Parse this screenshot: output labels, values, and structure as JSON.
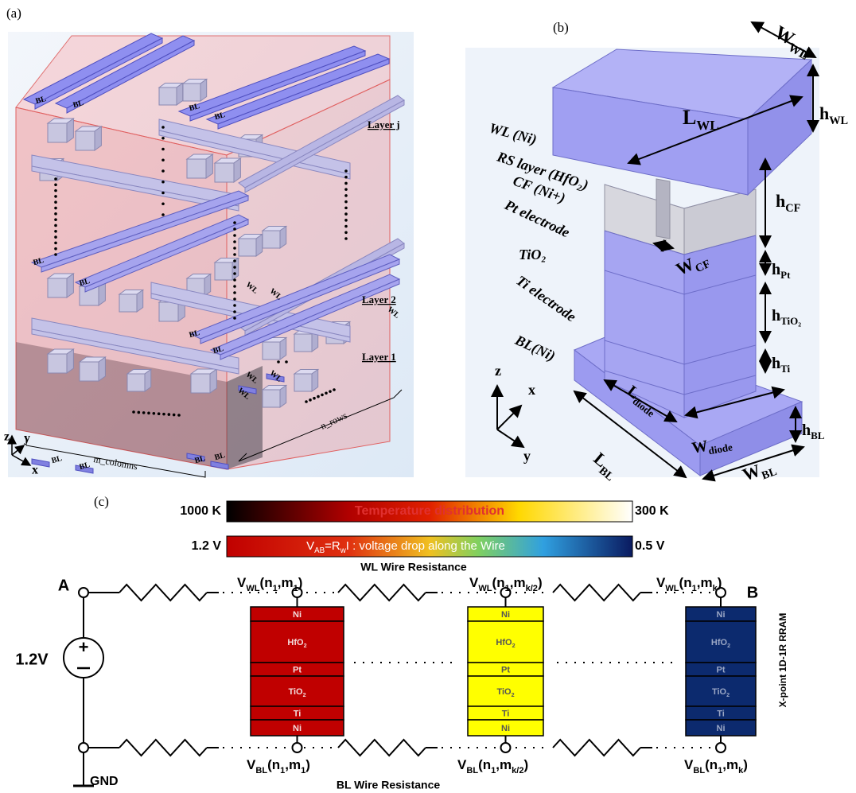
{
  "panel_a": {
    "label": "(a)",
    "bl_labels": [
      "BL",
      "BL",
      "BL",
      "BL",
      "BL",
      "BL",
      "BL",
      "BL",
      "BL",
      "BL",
      "BL",
      "BL"
    ],
    "wl_labels": [
      "WL",
      "WL",
      "WL",
      "WL",
      "WL",
      "WL"
    ],
    "layers": [
      "Layer j",
      "Layer 2",
      "Layer 1"
    ],
    "axes": [
      "z",
      "y",
      "x"
    ],
    "columns": "m_colomns",
    "rows": "n_rows"
  },
  "panel_b": {
    "label": "(b)",
    "materials": [
      "WL (Ni)",
      "RS layer (HfO₂)",
      "CF (Ni+)",
      "Pt electrode",
      "TiO₂",
      "Ti electrode",
      "BL(Ni)"
    ],
    "dimensions": [
      [
        "W",
        {
          "sub": "WL"
        }
      ],
      [
        "h",
        {
          "sub": "WL"
        }
      ],
      [
        "L",
        {
          "sub": "WL"
        }
      ],
      [
        "h",
        {
          "sub": "CF"
        }
      ],
      [
        "W",
        {
          "sub": "CF"
        }
      ],
      [
        "h",
        {
          "sub": "Pt"
        }
      ],
      [
        "h",
        {
          "sub": "TiO₂"
        }
      ],
      [
        "h",
        {
          "sub": "Ti"
        }
      ],
      [
        "L",
        {
          "sub": "diode"
        }
      ],
      [
        "W",
        {
          "sub": "diode"
        }
      ],
      [
        "L",
        {
          "sub": "BL"
        }
      ],
      [
        "h",
        {
          "sub": "BL"
        }
      ],
      [
        "W",
        {
          "sub": "BL"
        }
      ]
    ],
    "axes": [
      "z",
      "x",
      "y"
    ]
  },
  "panel_c": {
    "label": "(c)",
    "temperature_bar": {
      "low_end": "1000 K",
      "title": "Temperature distribution",
      "high_end": "300 K"
    },
    "voltage_bar": {
      "low_end": "1.2 V",
      "title": [
        "V",
        {
          "sub": "AB"
        },
        "=R",
        {
          "sub": "w"
        },
        "I : voltage drop along the Wire"
      ],
      "high_end": "0.5 V"
    },
    "wl_wire": "WL Wire Resistance",
    "bl_wire": "BL Wire Resistance",
    "node_a": "A",
    "node_b": "B",
    "source": "1.2V",
    "ground": "GND",
    "device": "X-point 1D-1R RRAM",
    "cell_layers": [
      "Ni",
      [
        "HfO",
        {
          "sub": "2"
        }
      ],
      "Pt",
      [
        "TiO",
        {
          "sub": "2"
        }
      ],
      "Ti",
      "Ni"
    ],
    "cells": [
      {
        "color": "#c00000",
        "text_color": "#f2dcdc",
        "top": [
          "V",
          {
            "sub": "WL"
          },
          "(n",
          {
            "sub": "1"
          },
          ",m",
          {
            "sub": "1"
          },
          ")"
        ],
        "bottom": [
          "V",
          {
            "sub": "BL"
          },
          "(n",
          {
            "sub": "1"
          },
          ",m",
          {
            "sub": "1"
          },
          ")"
        ]
      },
      {
        "color": "#ffff00",
        "text_color": "#555555",
        "top": [
          "V",
          {
            "sub": "WL"
          },
          "(n",
          {
            "sub": "1"
          },
          ",m",
          {
            "sub": "k/2"
          },
          ")"
        ],
        "bottom": [
          "V",
          {
            "sub": "BL"
          },
          "(n",
          {
            "sub": "1"
          },
          ",m",
          {
            "sub": "k/2"
          },
          ")"
        ]
      },
      {
        "color": "#0c2a6e",
        "text_color": "#9aa6c4",
        "top": [
          "V",
          {
            "sub": "WL"
          },
          "(n",
          {
            "sub": "1"
          },
          ",m",
          {
            "sub": "k"
          },
          ")"
        ],
        "bottom": [
          "V",
          {
            "sub": "BL"
          },
          "(n",
          {
            "sub": "1"
          },
          ",m",
          {
            "sub": "k"
          },
          ")"
        ]
      }
    ]
  }
}
